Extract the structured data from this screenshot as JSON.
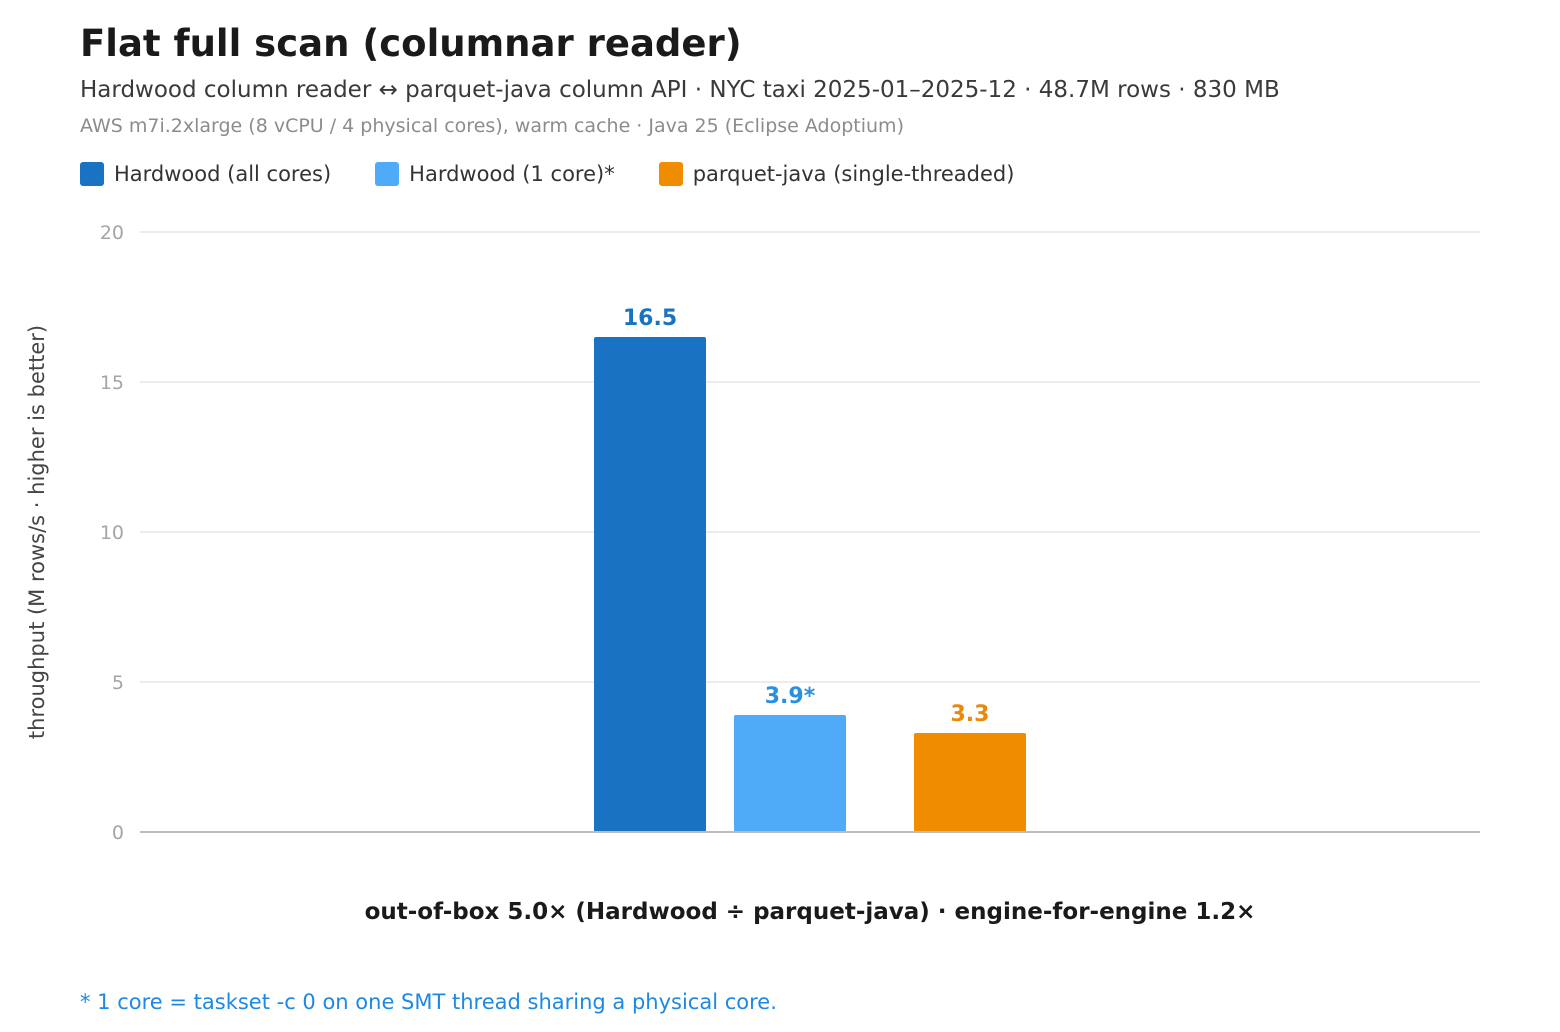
{
  "header": {
    "title": "Flat full scan (columnar reader)",
    "subtitle": "Hardwood column reader ↔ parquet-java column API · NYC taxi 2025-01–2025-12 · 48.7M rows · 830 MB",
    "environment": "AWS m7i.2xlarge (8 vCPU / 4 physical cores), warm cache · Java 25 (Eclipse Adoptium)"
  },
  "legend": [
    {
      "label": "Hardwood (all cores)",
      "color": "#1a73c2"
    },
    {
      "label": "Hardwood (1 core)*",
      "color": "#4faaf7"
    },
    {
      "label": "parquet-java (single-threaded)",
      "color": "#f08c00"
    }
  ],
  "chart_data": {
    "type": "bar",
    "ylabel": "throughput (M rows/s · higher is better)",
    "ylim": [
      0,
      20
    ],
    "yticks": [
      0,
      5,
      10,
      15,
      20
    ],
    "grid": true,
    "legend_position": "top-left",
    "series": [
      {
        "name": "Hardwood (all cores)",
        "value": 16.5,
        "label": "16.5",
        "color": "#1a73c2",
        "label_color": "#1a73c2"
      },
      {
        "name": "Hardwood (1 core)*",
        "value": 3.9,
        "label": "3.9*",
        "color": "#4faaf7",
        "label_color": "#2b8fe0"
      },
      {
        "name": "parquet-java (single-threaded)",
        "value": 3.3,
        "label": "3.3",
        "color": "#f08c00",
        "label_color": "#e8890c"
      }
    ]
  },
  "ratio_caption": "out-of-box 5.0× (Hardwood ÷ parquet-java) · engine-for-engine 1.2×",
  "footnote": "* 1 core = taskset -c 0 on one SMT thread sharing a physical core."
}
